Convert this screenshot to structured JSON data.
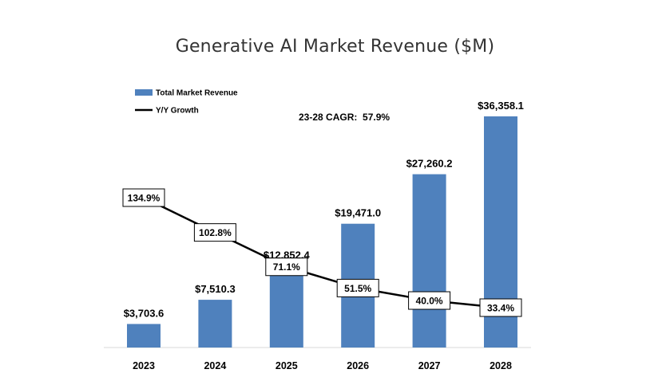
{
  "chart_data": {
    "type": "bar",
    "title": "Generative AI Market Revenue ($M)",
    "categories": [
      "2023",
      "2024",
      "2025",
      "2026",
      "2027",
      "2028"
    ],
    "series": [
      {
        "name": "Total Market Revenue",
        "type": "bar",
        "color": "#4F81BD",
        "values": [
          3703.6,
          7510.3,
          12852.4,
          19471.0,
          27260.2,
          36358.1
        ],
        "labels": [
          "$3,703.6",
          "$7,510.3",
          "$12,852.4",
          "$19,471.0",
          "$27,260.2",
          "$36,358.1"
        ]
      },
      {
        "name": "Y/Y Growth",
        "type": "line",
        "color": "#000000",
        "values": [
          134.9,
          102.8,
          71.1,
          51.5,
          40.0,
          33.4
        ],
        "labels": [
          "134.9%",
          "102.8%",
          "71.1%",
          "51.5%",
          "40.0%",
          "33.4%"
        ]
      }
    ],
    "annotation": "23-28 CAGR:  57.9%",
    "ylim": [
      0,
      40000
    ],
    "y2lim": [
      0,
      220
    ],
    "grid": false,
    "legend_position": "top-left"
  }
}
